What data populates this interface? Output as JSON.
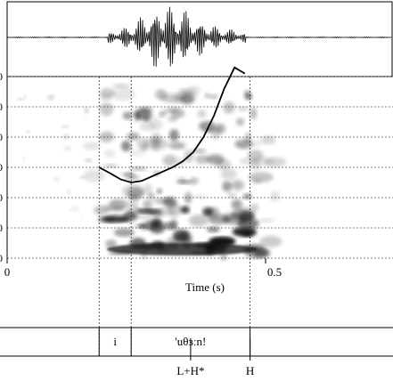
{
  "chart_data": {
    "type": "spectrogram",
    "x_axis": {
      "label": "Time (s)",
      "range": [
        0,
        0.7
      ],
      "ticks": [
        {
          "value": 0,
          "label": "0"
        },
        {
          "value": 0.5,
          "label": "0.5"
        }
      ]
    },
    "y_axis": {
      "ticks": [
        {
          "value": 0,
          "label": "0"
        },
        {
          "value": 1,
          "label": "0"
        },
        {
          "value": 2,
          "label": "0"
        },
        {
          "value": 3,
          "label": "0"
        },
        {
          "value": 4,
          "label": "0"
        },
        {
          "value": 5,
          "label": "0"
        },
        {
          "value": 6,
          "label": "0"
        }
      ]
    },
    "grid": true,
    "pitch_contour": {
      "x": [
        0.178,
        0.2,
        0.22,
        0.24,
        0.26,
        0.28,
        0.3,
        0.32,
        0.34,
        0.36,
        0.38,
        0.4,
        0.42,
        0.44,
        0.46
      ],
      "y": [
        3.0,
        2.8,
        2.6,
        2.5,
        2.55,
        2.7,
        2.85,
        3.0,
        3.2,
        3.5,
        4.0,
        4.7,
        5.6,
        6.3,
        6.1
      ]
    },
    "segment_boundaries": [
      0.178,
      0.24,
      0.47
    ],
    "segments": [
      {
        "start": 0.178,
        "end": 0.24,
        "label": "i"
      },
      {
        "start": 0.24,
        "end": 0.47,
        "label": "'uθɜːn!"
      }
    ],
    "tones": [
      {
        "time": 0.355,
        "label": "L+H*"
      },
      {
        "time": 0.47,
        "label": "H"
      }
    ]
  }
}
